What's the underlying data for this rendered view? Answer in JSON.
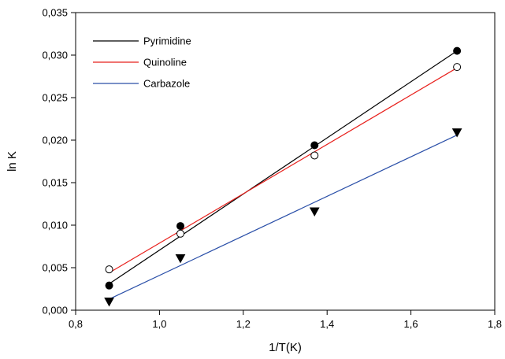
{
  "chart_data": {
    "type": "scatter",
    "title": "",
    "xlabel": "1/T(K)",
    "ylabel": "ln K",
    "xlim": [
      0.8,
      1.8
    ],
    "ylim": [
      0.0,
      0.035
    ],
    "x_ticks": [
      "0,8",
      "1,0",
      "1,2",
      "1,4",
      "1,6",
      "1,8"
    ],
    "y_ticks": [
      "0,000",
      "0,005",
      "0,010",
      "0,015",
      "0,020",
      "0,025",
      "0,030",
      "0,035"
    ],
    "grid": false,
    "legend_position": "top-left",
    "series": [
      {
        "name": "Pyrimidine",
        "marker": "filled-circle",
        "line_color": "#000000",
        "x": [
          0.88,
          1.05,
          1.37,
          1.71
        ],
        "y": [
          0.0029,
          0.0099,
          0.0194,
          0.0305
        ],
        "fit_line": {
          "x": [
            0.88,
            1.71
          ],
          "y": [
            0.0031,
            0.0305
          ]
        }
      },
      {
        "name": "Quinoline",
        "marker": "open-circle",
        "line_color": "#e8201c",
        "x": [
          0.88,
          1.05,
          1.37,
          1.71
        ],
        "y": [
          0.0048,
          0.009,
          0.0182,
          0.0286
        ],
        "fit_line": {
          "x": [
            0.88,
            1.71
          ],
          "y": [
            0.0044,
            0.0285
          ]
        }
      },
      {
        "name": "Carbazole",
        "marker": "filled-triangle-down",
        "line_color": "#2a4fa8",
        "x": [
          0.88,
          1.05,
          1.37,
          1.71
        ],
        "y": [
          0.001,
          0.0061,
          0.0116,
          0.0209
        ],
        "fit_line": {
          "x": [
            0.88,
            1.71
          ],
          "y": [
            0.0013,
            0.0206
          ]
        }
      }
    ]
  }
}
